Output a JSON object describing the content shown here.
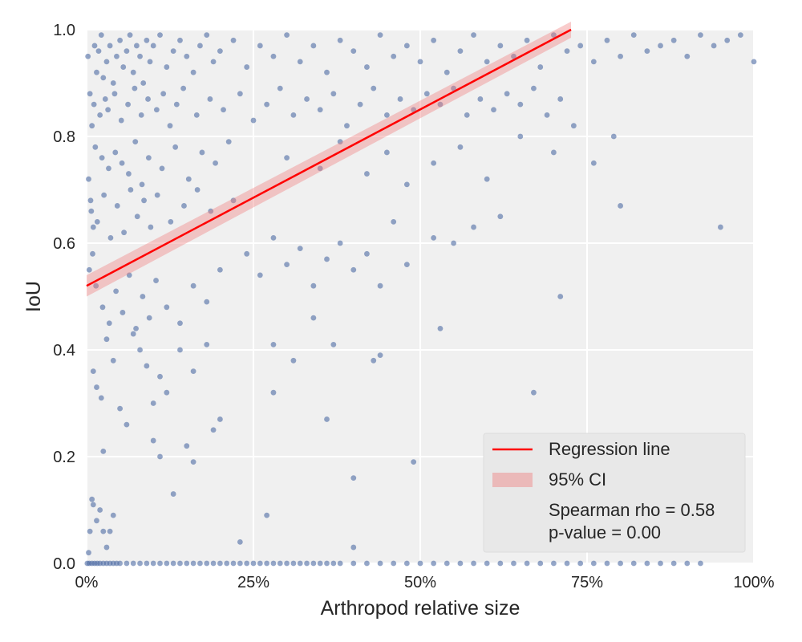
{
  "chart_data": {
    "type": "scatter",
    "xlabel": "Arthropod relative size",
    "ylabel": "IoU",
    "xlim": [
      0,
      100
    ],
    "ylim": [
      0,
      1
    ],
    "x_ticks": [
      0,
      25,
      50,
      75,
      100
    ],
    "x_tick_labels": [
      "0%",
      "25%",
      "50%",
      "75%",
      "100%"
    ],
    "y_ticks": [
      0,
      0.2,
      0.4,
      0.6,
      0.8,
      1.0
    ],
    "y_tick_labels": [
      "0.0",
      "0.2",
      "0.4",
      "0.6",
      "0.8",
      "1.0"
    ],
    "grid": true,
    "legend_position": "bottom-right",
    "legend": {
      "regression_label": "Regression line",
      "ci_label": "95% CI",
      "stat_lines": [
        "Spearman rho = 0.58",
        "p-value = 0.00"
      ]
    },
    "regression": {
      "x": [
        0,
        72.6
      ],
      "y": [
        0.52,
        1.0
      ],
      "ci_lower": [
        0.5,
        0.985
      ],
      "ci_upper": [
        0.54,
        1.015
      ]
    },
    "points": [
      [
        0.2,
        0.95
      ],
      [
        0.5,
        0.88
      ],
      [
        0.8,
        0.82
      ],
      [
        1.2,
        0.97
      ],
      [
        0.3,
        0.72
      ],
      [
        0.6,
        0.68
      ],
      [
        1.0,
        0.63
      ],
      [
        0.4,
        0.55
      ],
      [
        0.9,
        0.58
      ],
      [
        1.5,
        0.92
      ],
      [
        1.8,
        0.96
      ],
      [
        2.2,
        0.99
      ],
      [
        2.5,
        0.91
      ],
      [
        3.0,
        0.94
      ],
      [
        3.5,
        0.97
      ],
      [
        4.0,
        0.9
      ],
      [
        4.5,
        0.95
      ],
      [
        5.0,
        0.98
      ],
      [
        5.5,
        0.93
      ],
      [
        6.0,
        0.96
      ],
      [
        6.5,
        0.99
      ],
      [
        7.0,
        0.92
      ],
      [
        7.5,
        0.97
      ],
      [
        8.0,
        0.95
      ],
      [
        8.5,
        0.9
      ],
      [
        9.0,
        0.98
      ],
      [
        9.5,
        0.94
      ],
      [
        10.0,
        0.97
      ],
      [
        11,
        0.99
      ],
      [
        12,
        0.93
      ],
      [
        13,
        0.96
      ],
      [
        14,
        0.98
      ],
      [
        15,
        0.95
      ],
      [
        16,
        0.92
      ],
      [
        17,
        0.97
      ],
      [
        18,
        0.99
      ],
      [
        19,
        0.94
      ],
      [
        20,
        0.96
      ],
      [
        22,
        0.98
      ],
      [
        24,
        0.93
      ],
      [
        26,
        0.97
      ],
      [
        28,
        0.95
      ],
      [
        30,
        0.99
      ],
      [
        32,
        0.94
      ],
      [
        34,
        0.97
      ],
      [
        36,
        0.92
      ],
      [
        38,
        0.98
      ],
      [
        40,
        0.96
      ],
      [
        42,
        0.93
      ],
      [
        44,
        0.99
      ],
      [
        46,
        0.95
      ],
      [
        48,
        0.97
      ],
      [
        50,
        0.94
      ],
      [
        52,
        0.98
      ],
      [
        54,
        0.92
      ],
      [
        56,
        0.96
      ],
      [
        58,
        0.99
      ],
      [
        60,
        0.94
      ],
      [
        62,
        0.97
      ],
      [
        64,
        0.95
      ],
      [
        66,
        0.98
      ],
      [
        68,
        0.93
      ],
      [
        70,
        0.99
      ],
      [
        72,
        0.96
      ],
      [
        74,
        0.97
      ],
      [
        76,
        0.94
      ],
      [
        78,
        0.98
      ],
      [
        80,
        0.95
      ],
      [
        82,
        0.99
      ],
      [
        84,
        0.96
      ],
      [
        86,
        0.97
      ],
      [
        88,
        0.98
      ],
      [
        90,
        0.95
      ],
      [
        92,
        0.99
      ],
      [
        94,
        0.97
      ],
      [
        96,
        0.98
      ],
      [
        98,
        0.99
      ],
      [
        100,
        0.94
      ],
      [
        1.1,
        0.86
      ],
      [
        2.0,
        0.84
      ],
      [
        2.8,
        0.87
      ],
      [
        3.2,
        0.85
      ],
      [
        4.2,
        0.88
      ],
      [
        5.2,
        0.83
      ],
      [
        6.2,
        0.86
      ],
      [
        7.2,
        0.89
      ],
      [
        8.2,
        0.84
      ],
      [
        9.2,
        0.87
      ],
      [
        10.5,
        0.85
      ],
      [
        11.5,
        0.88
      ],
      [
        12.5,
        0.82
      ],
      [
        13.5,
        0.86
      ],
      [
        14.5,
        0.89
      ],
      [
        16.5,
        0.84
      ],
      [
        18.5,
        0.87
      ],
      [
        20.5,
        0.85
      ],
      [
        23,
        0.88
      ],
      [
        25,
        0.83
      ],
      [
        27,
        0.86
      ],
      [
        29,
        0.89
      ],
      [
        31,
        0.84
      ],
      [
        33,
        0.87
      ],
      [
        35,
        0.85
      ],
      [
        37,
        0.88
      ],
      [
        39,
        0.82
      ],
      [
        41,
        0.86
      ],
      [
        43,
        0.89
      ],
      [
        45,
        0.84
      ],
      [
        47,
        0.87
      ],
      [
        49,
        0.85
      ],
      [
        51,
        0.88
      ],
      [
        53,
        0.86
      ],
      [
        55,
        0.89
      ],
      [
        57,
        0.84
      ],
      [
        59,
        0.87
      ],
      [
        61,
        0.85
      ],
      [
        63,
        0.88
      ],
      [
        65,
        0.86
      ],
      [
        67,
        0.89
      ],
      [
        69,
        0.84
      ],
      [
        71,
        0.87
      ],
      [
        73,
        0.82
      ],
      [
        79,
        0.8
      ],
      [
        1.3,
        0.78
      ],
      [
        2.3,
        0.76
      ],
      [
        3.3,
        0.74
      ],
      [
        4.3,
        0.77
      ],
      [
        5.3,
        0.75
      ],
      [
        6.3,
        0.73
      ],
      [
        7.3,
        0.79
      ],
      [
        8.3,
        0.71
      ],
      [
        9.3,
        0.76
      ],
      [
        11.3,
        0.74
      ],
      [
        13.3,
        0.78
      ],
      [
        15.3,
        0.72
      ],
      [
        17.3,
        0.77
      ],
      [
        19.3,
        0.75
      ],
      [
        21.3,
        0.79
      ],
      [
        0.7,
        0.66
      ],
      [
        1.6,
        0.64
      ],
      [
        2.6,
        0.69
      ],
      [
        3.6,
        0.61
      ],
      [
        4.6,
        0.67
      ],
      [
        5.6,
        0.62
      ],
      [
        6.6,
        0.7
      ],
      [
        7.6,
        0.65
      ],
      [
        8.6,
        0.68
      ],
      [
        9.6,
        0.63
      ],
      [
        10.6,
        0.69
      ],
      [
        12.6,
        0.64
      ],
      [
        14.6,
        0.67
      ],
      [
        16.6,
        0.7
      ],
      [
        18.6,
        0.66
      ],
      [
        22,
        0.68
      ],
      [
        30,
        0.76
      ],
      [
        35,
        0.74
      ],
      [
        38,
        0.79
      ],
      [
        42,
        0.73
      ],
      [
        45,
        0.77
      ],
      [
        48,
        0.71
      ],
      [
        52,
        0.75
      ],
      [
        56,
        0.78
      ],
      [
        60,
        0.72
      ],
      [
        65,
        0.8
      ],
      [
        70,
        0.77
      ],
      [
        76,
        0.75
      ],
      [
        80,
        0.67
      ],
      [
        1.4,
        0.52
      ],
      [
        2.4,
        0.48
      ],
      [
        3.4,
        0.45
      ],
      [
        4.4,
        0.51
      ],
      [
        5.4,
        0.47
      ],
      [
        6.4,
        0.54
      ],
      [
        7.4,
        0.44
      ],
      [
        8.4,
        0.5
      ],
      [
        9.4,
        0.46
      ],
      [
        10.4,
        0.53
      ],
      [
        12,
        0.48
      ],
      [
        14,
        0.45
      ],
      [
        16,
        0.52
      ],
      [
        18,
        0.49
      ],
      [
        20,
        0.55
      ],
      [
        24,
        0.58
      ],
      [
        26,
        0.54
      ],
      [
        28,
        0.61
      ],
      [
        30,
        0.56
      ],
      [
        32,
        0.59
      ],
      [
        34,
        0.52
      ],
      [
        36,
        0.57
      ],
      [
        38,
        0.6
      ],
      [
        40,
        0.55
      ],
      [
        42,
        0.58
      ],
      [
        44,
        0.52
      ],
      [
        46,
        0.64
      ],
      [
        48,
        0.56
      ],
      [
        52,
        0.61
      ],
      [
        55,
        0.6
      ],
      [
        58,
        0.63
      ],
      [
        62,
        0.65
      ],
      [
        71,
        0.5
      ],
      [
        95,
        0.63
      ],
      [
        28,
        0.41
      ],
      [
        31,
        0.38
      ],
      [
        34,
        0.46
      ],
      [
        37,
        0.41
      ],
      [
        44,
        0.39
      ],
      [
        53,
        0.44
      ],
      [
        1.0,
        0.36
      ],
      [
        1.5,
        0.33
      ],
      [
        2.2,
        0.31
      ],
      [
        3.0,
        0.42
      ],
      [
        4.0,
        0.38
      ],
      [
        5.0,
        0.29
      ],
      [
        6.0,
        0.26
      ],
      [
        7.0,
        0.43
      ],
      [
        8.0,
        0.4
      ],
      [
        9.0,
        0.37
      ],
      [
        10,
        0.3
      ],
      [
        11,
        0.35
      ],
      [
        12,
        0.32
      ],
      [
        14,
        0.4
      ],
      [
        16,
        0.36
      ],
      [
        18,
        0.41
      ],
      [
        19,
        0.25
      ],
      [
        20,
        0.27
      ],
      [
        15,
        0.22
      ],
      [
        16,
        0.19
      ],
      [
        11,
        0.2
      ],
      [
        10,
        0.23
      ],
      [
        2.5,
        0.21
      ],
      [
        28,
        0.32
      ],
      [
        36,
        0.27
      ],
      [
        43,
        0.38
      ],
      [
        67,
        0.32
      ],
      [
        49,
        0.19
      ],
      [
        40,
        0.16
      ],
      [
        13,
        0.13
      ],
      [
        0.5,
        0.06
      ],
      [
        1.0,
        0.11
      ],
      [
        1.5,
        0.08
      ],
      [
        2.0,
        0.1
      ],
      [
        2.5,
        0.06
      ],
      [
        3.0,
        0.03
      ],
      [
        3.5,
        0.06
      ],
      [
        4.0,
        0.09
      ],
      [
        27,
        0.09
      ],
      [
        23,
        0.04
      ],
      [
        40,
        0.03
      ],
      [
        0.8,
        0.12
      ],
      [
        0.3,
        0.02
      ]
    ],
    "zero_points_x": [
      0.1,
      0.4,
      0.8,
      1.2,
      1.6,
      2.0,
      2.5,
      3.0,
      3.5,
      4.0,
      4.5,
      5.0,
      6.0,
      7.0,
      8.0,
      9.0,
      10,
      11,
      12,
      13,
      14,
      15,
      16,
      17,
      18,
      19,
      20,
      21,
      22,
      23,
      24,
      25,
      26,
      27,
      28,
      29,
      30,
      31,
      32,
      33,
      34,
      35,
      36,
      37,
      38,
      40,
      42,
      44,
      46,
      48,
      50,
      52,
      54,
      56,
      58,
      60,
      62,
      64,
      66,
      68,
      70,
      72,
      74,
      76,
      78,
      80,
      82,
      84,
      86,
      88,
      90,
      92
    ]
  }
}
